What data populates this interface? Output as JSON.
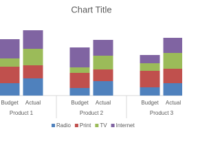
{
  "chart_data": {
    "type": "stacked_bar",
    "title": "Chart Title",
    "categories": [
      "Budget",
      "Actual",
      "Budget",
      "Actual",
      "Budget",
      "Actual"
    ],
    "groups": [
      "Product 1",
      "Product 2",
      "Product 3"
    ],
    "series": [
      {
        "name": "Radio",
        "color": "#4f81bd",
        "values": [
          18,
          25,
          11,
          21,
          12,
          18
        ]
      },
      {
        "name": "Print",
        "color": "#c0504d",
        "values": [
          24,
          19,
          22,
          17,
          24,
          21
        ]
      },
      {
        "name": "TV",
        "color": "#9bbb59",
        "values": [
          12,
          24,
          8,
          20,
          11,
          23
        ]
      },
      {
        "name": "Internet",
        "color": "#8064a2",
        "values": [
          28,
          27,
          29,
          23,
          12,
          22
        ]
      }
    ]
  }
}
